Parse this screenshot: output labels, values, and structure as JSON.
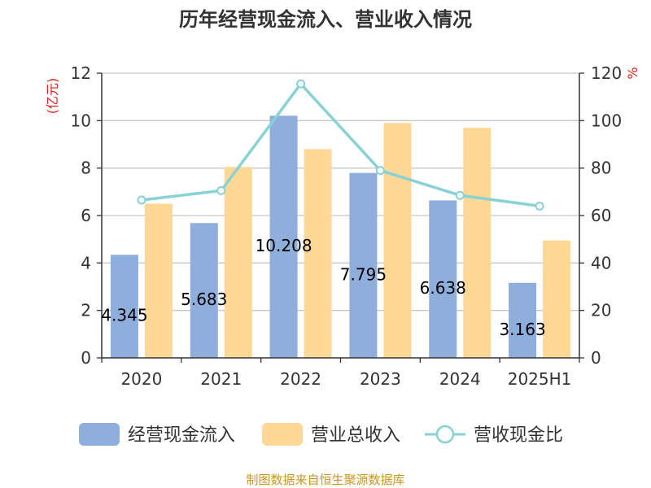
{
  "title": "历年经营现金流入、营业收入情况",
  "source": "制图数据来自恒生聚源数据库",
  "colors": {
    "cash_inflow": "#8eaedb",
    "revenue": "#ffd896",
    "ratio": "#88d2d6",
    "unit": "#e0201a",
    "source": "#c8961e",
    "grid": "#c8c8c8",
    "axis": "#333333"
  },
  "chart_data": {
    "type": "bar",
    "title": "历年经营现金流入、营业收入情况",
    "categories": [
      "2020",
      "2021",
      "2022",
      "2023",
      "2024",
      "2025H1"
    ],
    "y_left": {
      "label": "(亿元)",
      "min": 0,
      "max": 12,
      "ticks": [
        "0",
        "2",
        "4",
        "6",
        "8",
        "10",
        "12"
      ]
    },
    "y_right": {
      "label": "%",
      "min": 0,
      "max": 120,
      "ticks": [
        "0",
        "20",
        "40",
        "60",
        "80",
        "100",
        "120"
      ]
    },
    "grid": true,
    "legend_position": "bottom",
    "series": [
      {
        "name": "经营现金流入",
        "type": "bar",
        "axis": "left",
        "values": [
          4.345,
          5.683,
          10.208,
          7.795,
          6.638,
          3.163
        ],
        "labels": [
          "4.345",
          "5.683",
          "10.208",
          "7.795",
          "6.638",
          "3.163"
        ]
      },
      {
        "name": "营业总收入",
        "type": "bar",
        "axis": "left",
        "values": [
          6.5,
          8.05,
          8.8,
          9.9,
          9.7,
          4.95
        ]
      },
      {
        "name": "营收现金比",
        "type": "line",
        "axis": "right",
        "values": [
          66.5,
          70.5,
          115.5,
          79,
          68.5,
          64
        ]
      }
    ]
  }
}
